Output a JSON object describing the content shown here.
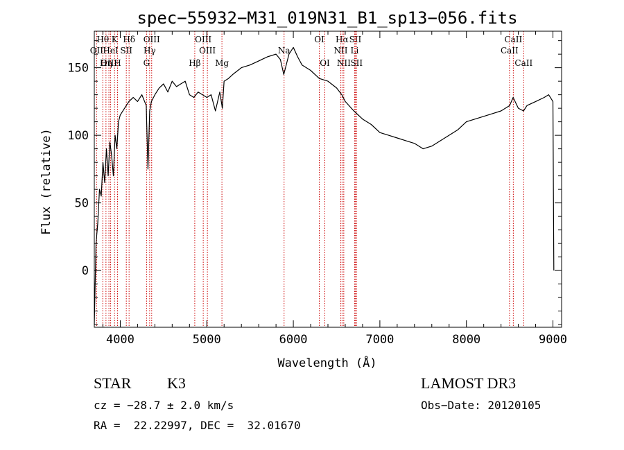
{
  "chart_data": {
    "type": "line",
    "title": "spec−55932−M31_019N31_B1_sp13−056.fits",
    "xlabel": "Wavelength (Å)",
    "ylabel": "Flux (relative)",
    "xlim": [
      3700,
      9100
    ],
    "ylim": [
      -42,
      177
    ],
    "x_ticks": [
      4000,
      5000,
      6000,
      7000,
      8000,
      9000
    ],
    "x_tick_labels": [
      "4000",
      "5000",
      "6000",
      "7000",
      "8000",
      "9000"
    ],
    "y_ticks": [
      0,
      50,
      100,
      150
    ],
    "y_tick_labels": [
      "0",
      "50",
      "100",
      "150"
    ],
    "line_color": "#000000",
    "marker_color": "#cc0000",
    "series": [
      {
        "x": [
          3700,
          3720,
          3740,
          3760,
          3780,
          3800,
          3820,
          3840,
          3860,
          3880,
          3900,
          3920,
          3940,
          3960,
          3980,
          4000,
          4050,
          4100,
          4150,
          4200,
          4250,
          4300,
          4320,
          4340,
          4360,
          4400,
          4450,
          4500,
          4550,
          4600,
          4650,
          4700,
          4750,
          4800,
          4850,
          4900,
          4950,
          5000,
          5050,
          5100,
          5150,
          5180,
          5200,
          5250,
          5300,
          5400,
          5500,
          5600,
          5700,
          5800,
          5850,
          5890,
          5950,
          6000,
          6050,
          6100,
          6200,
          6300,
          6400,
          6500,
          6560,
          6600,
          6700,
          6800,
          6900,
          7000,
          7100,
          7200,
          7300,
          7400,
          7500,
          7600,
          7700,
          7800,
          7900,
          8000,
          8100,
          8200,
          8300,
          8400,
          8500,
          8540,
          8600,
          8660,
          8700,
          8800,
          8900,
          8950,
          9000,
          9010
        ],
        "y": [
          -40,
          20,
          35,
          60,
          55,
          80,
          65,
          90,
          70,
          95,
          85,
          70,
          100,
          90,
          110,
          115,
          120,
          125,
          128,
          125,
          130,
          122,
          75,
          118,
          125,
          130,
          135,
          138,
          132,
          140,
          136,
          138,
          140,
          130,
          128,
          132,
          130,
          128,
          130,
          118,
          132,
          120,
          140,
          142,
          145,
          150,
          152,
          155,
          158,
          160,
          156,
          145,
          160,
          165,
          158,
          152,
          148,
          142,
          140,
          135,
          130,
          125,
          118,
          112,
          108,
          102,
          100,
          98,
          96,
          94,
          90,
          92,
          96,
          100,
          104,
          110,
          112,
          114,
          116,
          118,
          122,
          128,
          120,
          118,
          122,
          125,
          128,
          130,
          125,
          0
        ]
      }
    ],
    "lines": [
      {
        "name": "Hθ",
        "x": 3798,
        "row": 0
      },
      {
        "name": "OII",
        "x": 3727,
        "row": 1
      },
      {
        "name": "OIII",
        "x": 3869,
        "row": 2
      },
      {
        "name": "Hη",
        "x": 3835,
        "row": 2
      },
      {
        "name": "HeI",
        "x": 3889,
        "row": 1
      },
      {
        "name": "K",
        "x": 3934,
        "row": 0
      },
      {
        "name": "H",
        "x": 3968,
        "row": 2
      },
      {
        "name": "Hδ",
        "x": 4102,
        "row": 0
      },
      {
        "name": "SII",
        "x": 4070,
        "row": 1
      },
      {
        "name": "OIII",
        "x": 4363,
        "row": 0
      },
      {
        "name": "Hγ",
        "x": 4340,
        "row": 1
      },
      {
        "name": "G",
        "x": 4304,
        "row": 2
      },
      {
        "name": "Hβ",
        "x": 4861,
        "row": 2
      },
      {
        "name": "OIII",
        "x": 4959,
        "row": 0
      },
      {
        "name": "OIII",
        "x": 5007,
        "row": 1
      },
      {
        "name": "Mg",
        "x": 5175,
        "row": 2
      },
      {
        "name": "Na",
        "x": 5893,
        "row": 1
      },
      {
        "name": "OI",
        "x": 6300,
        "row": 0
      },
      {
        "name": "OI",
        "x": 6364,
        "row": 2
      },
      {
        "name": "Hα",
        "x": 6563,
        "row": 0
      },
      {
        "name": "NII",
        "x": 6548,
        "row": 1
      },
      {
        "name": "NII",
        "x": 6583,
        "row": 2
      },
      {
        "name": "SII",
        "x": 6716,
        "row": 0
      },
      {
        "name": "Li",
        "x": 6708,
        "row": 1
      },
      {
        "name": "SII",
        "x": 6731,
        "row": 2
      },
      {
        "name": "CaII",
        "x": 8542,
        "row": 0
      },
      {
        "name": "CaII",
        "x": 8498,
        "row": 1
      },
      {
        "name": "CaII",
        "x": 8662,
        "row": 2
      }
    ]
  },
  "info": {
    "object_class": "STAR",
    "subclass": "K3",
    "survey": "LAMOST DR3",
    "velocity": "cz = −28.7 ± 2.0 km/s",
    "obs_date": "Obs−Date: 20120105",
    "coords": "RA =  22.22997, DEC =  32.01670"
  }
}
